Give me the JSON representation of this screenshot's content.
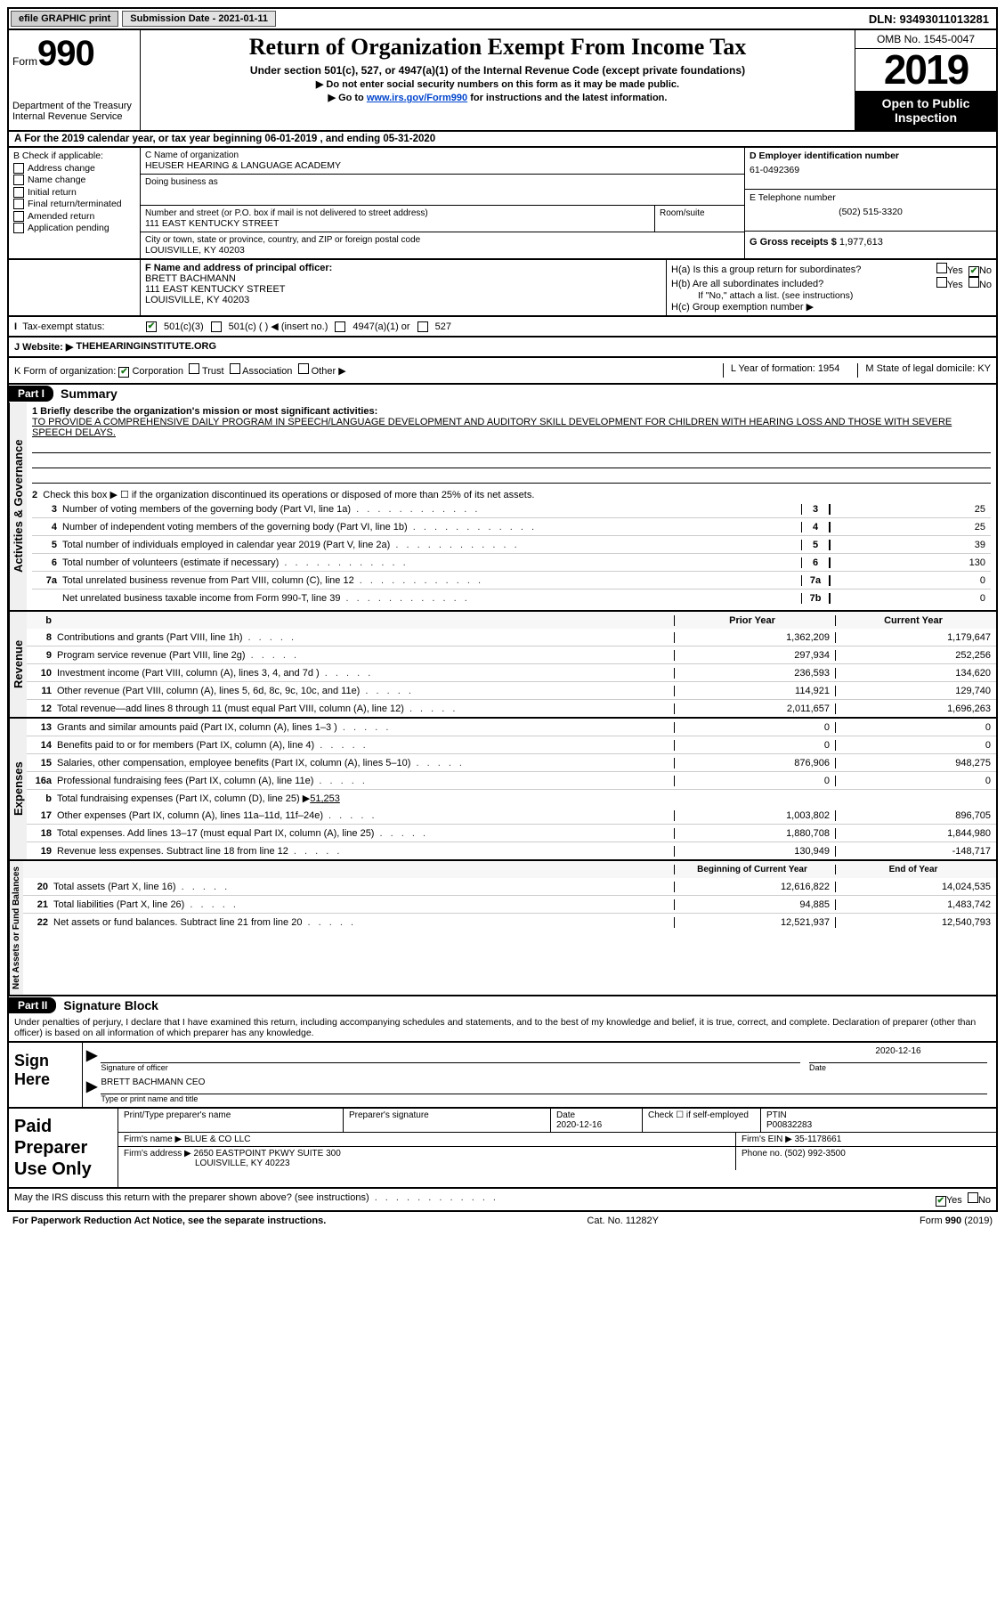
{
  "topbar": {
    "efile": "efile GRAPHIC print",
    "submission": "Submission Date - 2021-01-11",
    "dln": "DLN: 93493011013281"
  },
  "header": {
    "form_word": "Form",
    "form_num": "990",
    "dept1": "Department of the Treasury",
    "dept2": "Internal Revenue Service",
    "title": "Return of Organization Exempt From Income Tax",
    "sub1": "Under section 501(c), 527, or 4947(a)(1) of the Internal Revenue Code (except private foundations)",
    "sub2": "▶ Do not enter social security numbers on this form as it may be made public.",
    "sub3_pre": "▶ Go to ",
    "sub3_link": "www.irs.gov/Form990",
    "sub3_post": " for instructions and the latest information.",
    "omb": "OMB No. 1545-0047",
    "year": "2019",
    "open": "Open to Public Inspection"
  },
  "row_a": "A   For the 2019 calendar year, or tax year beginning 06-01-2019     , and ending 05-31-2020",
  "box_b": {
    "label": "B Check if applicable:",
    "items": [
      "Address change",
      "Name change",
      "Initial return",
      "Final return/terminated",
      "Amended return",
      "Application pending"
    ]
  },
  "box_c": {
    "label_name": "C Name of organization",
    "org": "HEUSER HEARING & LANGUAGE ACADEMY",
    "dba": "Doing business as",
    "addr_label": "Number and street (or P.O. box if mail is not delivered to street address)",
    "room": "Room/suite",
    "street": "111 EAST KENTUCKY STREET",
    "city_label": "City or town, state or province, country, and ZIP or foreign postal code",
    "city": "LOUISVILLE, KY  40203"
  },
  "box_d": {
    "label": "D Employer identification number",
    "val": "61-0492369"
  },
  "box_e": {
    "label": "E Telephone number",
    "val": "(502) 515-3320"
  },
  "box_g": {
    "label": "G Gross receipts $",
    "val": "1,977,613"
  },
  "box_f": {
    "label": "F  Name and address of principal officer:",
    "name": "BRETT BACHMANN",
    "street": "111 EAST KENTUCKY STREET",
    "city": "LOUISVILLE, KY  40203"
  },
  "box_h": {
    "ha": "H(a)  Is this a group return for subordinates?",
    "hb": "H(b)  Are all subordinates included?",
    "hb_note": "If \"No,\" attach a list. (see instructions)",
    "hc": "H(c)  Group exemption number ▶"
  },
  "tax_exempt": {
    "label": "Tax-exempt status:",
    "o1": "501(c)(3)",
    "o2": "501(c) (  ) ◀ (insert no.)",
    "o3": "4947(a)(1) or",
    "o4": "527"
  },
  "website": {
    "label": "J   Website: ▶",
    "val": "THEHEARINGINSTITUTE.ORG"
  },
  "row_k": {
    "k": "K Form of organization:",
    "opts": [
      "Corporation",
      "Trust",
      "Association",
      "Other ▶"
    ],
    "l": "L Year of formation: 1954",
    "m": "M State of legal domicile: KY"
  },
  "part1": {
    "bar": "Part I",
    "title": "Summary"
  },
  "gov": {
    "side": "Activities & Governance",
    "l1": "1  Briefly describe the organization's mission or most significant activities:",
    "mission": "TO PROVIDE A COMPREHENSIVE DAILY PROGRAM IN SPEECH/LANGUAGE DEVELOPMENT AND AUDITORY SKILL DEVELOPMENT FOR CHILDREN WITH HEARING LOSS AND THOSE WITH SEVERE SPEECH DELAYS.",
    "l2": "Check this box ▶ ☐  if the organization discontinued its operations or disposed of more than 25% of its net assets.",
    "rows": [
      {
        "n": "3",
        "t": "Number of voting members of the governing body (Part VI, line 1a)",
        "c": "3",
        "v": "25"
      },
      {
        "n": "4",
        "t": "Number of independent voting members of the governing body (Part VI, line 1b)",
        "c": "4",
        "v": "25"
      },
      {
        "n": "5",
        "t": "Total number of individuals employed in calendar year 2019 (Part V, line 2a)",
        "c": "5",
        "v": "39"
      },
      {
        "n": "6",
        "t": "Total number of volunteers (estimate if necessary)",
        "c": "6",
        "v": "130"
      },
      {
        "n": "7a",
        "t": "Total unrelated business revenue from Part VIII, column (C), line 12",
        "c": "7a",
        "v": "0"
      },
      {
        "n": "",
        "t": "Net unrelated business taxable income from Form 990-T, line 39",
        "c": "7b",
        "v": "0"
      }
    ]
  },
  "rev": {
    "side": "Revenue",
    "hdr_b": "b",
    "col_prior": "Prior Year",
    "col_cur": "Current Year",
    "rows": [
      {
        "n": "8",
        "t": "Contributions and grants (Part VIII, line 1h)",
        "p": "1,362,209",
        "c": "1,179,647"
      },
      {
        "n": "9",
        "t": "Program service revenue (Part VIII, line 2g)",
        "p": "297,934",
        "c": "252,256"
      },
      {
        "n": "10",
        "t": "Investment income (Part VIII, column (A), lines 3, 4, and 7d )",
        "p": "236,593",
        "c": "134,620"
      },
      {
        "n": "11",
        "t": "Other revenue (Part VIII, column (A), lines 5, 6d, 8c, 9c, 10c, and 11e)",
        "p": "114,921",
        "c": "129,740"
      },
      {
        "n": "12",
        "t": "Total revenue—add lines 8 through 11 (must equal Part VIII, column (A), line 12)",
        "p": "2,011,657",
        "c": "1,696,263"
      }
    ]
  },
  "exp": {
    "side": "Expenses",
    "rows": [
      {
        "n": "13",
        "t": "Grants and similar amounts paid (Part IX, column (A), lines 1–3 )",
        "p": "0",
        "c": "0"
      },
      {
        "n": "14",
        "t": "Benefits paid to or for members (Part IX, column (A), line 4)",
        "p": "0",
        "c": "0"
      },
      {
        "n": "15",
        "t": "Salaries, other compensation, employee benefits (Part IX, column (A), lines 5–10)",
        "p": "876,906",
        "c": "948,275"
      },
      {
        "n": "16a",
        "t": "Professional fundraising fees (Part IX, column (A), line 11e)",
        "p": "0",
        "c": "0"
      }
    ],
    "row_b": {
      "n": "b",
      "t": "Total fundraising expenses (Part IX, column (D), line 25) ▶",
      "v": "51,253"
    },
    "rows2": [
      {
        "n": "17",
        "t": "Other expenses (Part IX, column (A), lines 11a–11d, 11f–24e)",
        "p": "1,003,802",
        "c": "896,705"
      },
      {
        "n": "18",
        "t": "Total expenses. Add lines 13–17 (must equal Part IX, column (A), line 25)",
        "p": "1,880,708",
        "c": "1,844,980"
      },
      {
        "n": "19",
        "t": "Revenue less expenses. Subtract line 18 from line 12",
        "p": "130,949",
        "c": "-148,717"
      }
    ]
  },
  "net": {
    "side": "Net Assets or Fund Balances",
    "col_beg": "Beginning of Current Year",
    "col_end": "End of Year",
    "rows": [
      {
        "n": "20",
        "t": "Total assets (Part X, line 16)",
        "p": "12,616,822",
        "c": "14,024,535"
      },
      {
        "n": "21",
        "t": "Total liabilities (Part X, line 26)",
        "p": "94,885",
        "c": "1,483,742"
      },
      {
        "n": "22",
        "t": "Net assets or fund balances. Subtract line 21 from line 20",
        "p": "12,521,937",
        "c": "12,540,793"
      }
    ]
  },
  "part2": {
    "bar": "Part II",
    "title": "Signature Block"
  },
  "penalties": "Under penalties of perjury, I declare that I have examined this return, including accompanying schedules and statements, and to the best of my knowledge and belief, it is true, correct, and complete. Declaration of preparer (other than officer) is based on all information of which preparer has any knowledge.",
  "sign": {
    "left": "Sign Here",
    "sig_officer_lbl": "Signature of officer",
    "date_lbl": "Date",
    "date": "2020-12-16",
    "name": "BRETT BACHMANN  CEO",
    "name_lbl": "Type or print name and title"
  },
  "prep": {
    "left": "Paid Preparer Use Only",
    "h1": "Print/Type preparer's name",
    "h2": "Preparer's signature",
    "h3_lbl": "Date",
    "h3": "2020-12-16",
    "h4_lbl": "Check ☐ if self-employed",
    "h5_lbl": "PTIN",
    "h5": "P00832283",
    "firm_lbl": "Firm's name    ▶",
    "firm": "BLUE & CO LLC",
    "ein_lbl": "Firm's EIN ▶",
    "ein": "35-1178661",
    "addr_lbl": "Firm's address ▶",
    "addr": "2650 EASTPOINT PKWY SUITE 300",
    "city": "LOUISVILLE, KY  40223",
    "phone_lbl": "Phone no.",
    "phone": "(502) 992-3500"
  },
  "discuss": "May the IRS discuss this return with the preparer shown above? (see instructions)",
  "foot": {
    "l": "For Paperwork Reduction Act Notice, see the separate instructions.",
    "m": "Cat. No. 11282Y",
    "r": "Form 990 (2019)"
  },
  "yesno": {
    "yes": "Yes",
    "no": "No"
  }
}
